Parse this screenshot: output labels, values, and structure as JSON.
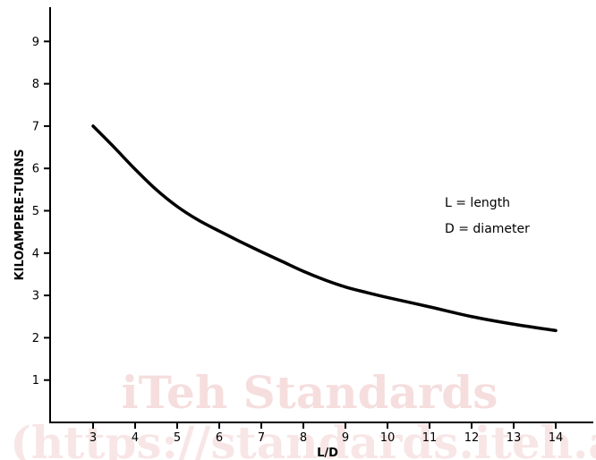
{
  "watermark": {
    "line1": "iTeh Standards",
    "line2": "(https://standards.iteh.ai"
  },
  "legend": {
    "line1": "L = length",
    "line2": "D = diameter"
  },
  "chart_data": {
    "type": "line",
    "title": "",
    "xlabel": "L/D",
    "ylabel": "KILOAMPERE-TURNS",
    "xlim": [
      2,
      14.8
    ],
    "ylim": [
      0,
      9.8
    ],
    "x_ticks": [
      3,
      4,
      5,
      6,
      7,
      8,
      9,
      10,
      11,
      12,
      13,
      14
    ],
    "y_ticks": [
      1,
      2,
      3,
      4,
      5,
      6,
      7,
      8,
      9
    ],
    "grid": false,
    "series": [
      {
        "x": [
          3,
          3.5,
          4,
          4.5,
          5,
          5.5,
          6,
          6.5,
          7,
          7.5,
          8,
          8.5,
          9,
          9.5,
          10,
          11,
          12,
          13,
          14
        ],
        "values": [
          7.0,
          6.5,
          5.98,
          5.5,
          5.1,
          4.78,
          4.52,
          4.27,
          4.03,
          3.8,
          3.57,
          3.37,
          3.2,
          3.07,
          2.95,
          2.73,
          2.5,
          2.32,
          2.17
        ],
        "color": "#000000"
      }
    ]
  }
}
